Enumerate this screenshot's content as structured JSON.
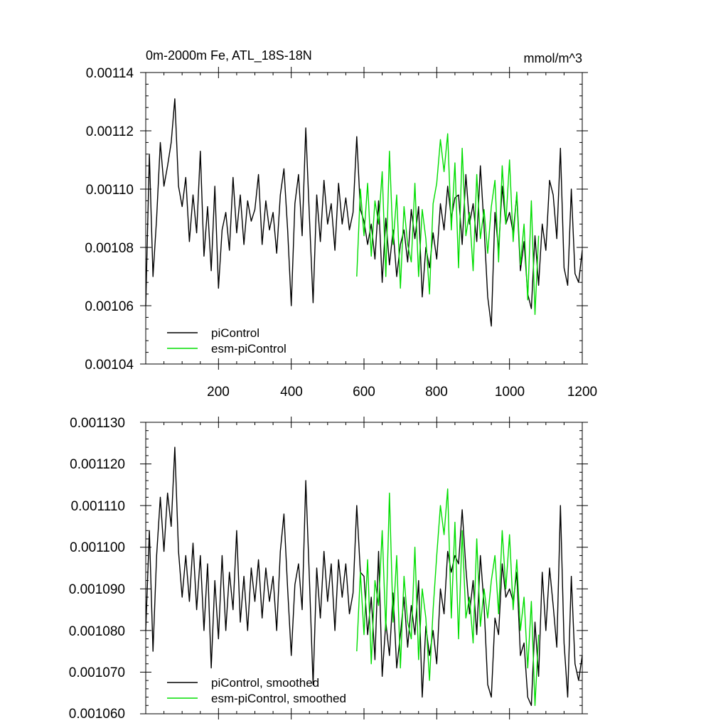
{
  "colors": {
    "pi": "#000000",
    "esm": "#00dd00",
    "background": "#ffffff"
  },
  "chart_data": [
    {
      "type": "line",
      "title": "0m-2000m Fe, ATL_18S-18N",
      "units": "mmol/m^3",
      "xlim": [
        0,
        1200
      ],
      "ylim": [
        0.00104,
        0.00114
      ],
      "x_ticks": [
        200,
        400,
        600,
        800,
        1000,
        1200
      ],
      "x_tick_labels": [
        "200",
        "400",
        "600",
        "800",
        "1000",
        "1200"
      ],
      "y_ticks": [
        0.00104,
        0.00106,
        0.00108,
        0.0011,
        0.00112,
        0.00114
      ],
      "y_tick_labels": [
        "0.00104",
        "0.00106",
        "0.00108",
        "0.00110",
        "0.00112",
        "0.00114"
      ],
      "legend_position": "bottom-left",
      "series": [
        {
          "name": "piControl",
          "color": "#000000",
          "x": [
            0,
            10,
            20,
            30,
            40,
            50,
            60,
            70,
            80,
            90,
            100,
            110,
            120,
            130,
            140,
            150,
            160,
            170,
            180,
            190,
            200,
            210,
            220,
            230,
            240,
            250,
            260,
            270,
            280,
            290,
            300,
            310,
            320,
            330,
            340,
            350,
            360,
            370,
            380,
            390,
            400,
            410,
            420,
            430,
            440,
            450,
            460,
            470,
            480,
            490,
            500,
            510,
            520,
            530,
            540,
            550,
            560,
            570,
            580,
            590,
            600,
            610,
            620,
            630,
            640,
            650,
            660,
            670,
            680,
            690,
            700,
            710,
            720,
            730,
            740,
            750,
            760,
            770,
            780,
            790,
            800,
            810,
            820,
            830,
            840,
            850,
            860,
            870,
            880,
            890,
            900,
            910,
            920,
            930,
            940,
            950,
            960,
            970,
            980,
            990,
            1000,
            1010,
            1020,
            1030,
            1040,
            1050,
            1060,
            1070,
            1080,
            1090,
            1100,
            1110,
            1120,
            1130,
            1140,
            1150,
            1160,
            1170,
            1180,
            1190,
            1200
          ],
          "values": [
            0.00106,
            0.001112,
            0.00107,
            0.00109,
            0.001116,
            0.001101,
            0.001108,
            0.001116,
            0.001131,
            0.001101,
            0.001094,
            0.001104,
            0.001082,
            0.001098,
            0.001085,
            0.001113,
            0.001077,
            0.001094,
            0.001072,
            0.001101,
            0.001066,
            0.001086,
            0.001092,
            0.001079,
            0.001104,
            0.001085,
            0.001098,
            0.001081,
            0.001096,
            0.001089,
            0.001093,
            0.001105,
            0.001081,
            0.001096,
            0.001086,
            0.001092,
            0.001078,
            0.001098,
            0.001107,
            0.001086,
            0.00106,
            0.001095,
            0.001105,
            0.001084,
            0.001121,
            0.00109,
            0.001061,
            0.001098,
            0.001082,
            0.001103,
            0.001088,
            0.001095,
            0.001079,
            0.001102,
            0.001088,
            0.001097,
            0.001086,
            0.001092,
            0.001118,
            0.001093,
            0.001089,
            0.001081,
            0.001088,
            0.001076,
            0.001096,
            0.001068,
            0.00109,
            0.001074,
            0.001086,
            0.00107,
            0.001081,
            0.001086,
            0.001075,
            0.001093,
            0.001083,
            0.001094,
            0.001063,
            0.00108,
            0.001073,
            0.001085,
            0.001076,
            0.001095,
            0.001086,
            0.001101,
            0.00109,
            0.001097,
            0.001098,
            0.001081,
            0.001105,
            0.001088,
            0.001095,
            0.001082,
            0.001108,
            0.001087,
            0.001063,
            0.001053,
            0.001092,
            0.001079,
            0.001101,
            0.001088,
            0.001092,
            0.001085,
            0.001098,
            0.001072,
            0.001082,
            0.001064,
            0.001059,
            0.001084,
            0.001067,
            0.001088,
            0.001079,
            0.001103,
            0.001098,
            0.001083,
            0.001114,
            0.001073,
            0.001067,
            0.0011,
            0.001071,
            0.001068,
            0.001079
          ]
        },
        {
          "name": "esm-piControl",
          "color": "#00dd00",
          "x": [
            580,
            590,
            600,
            610,
            620,
            630,
            640,
            650,
            660,
            670,
            680,
            690,
            700,
            710,
            720,
            730,
            740,
            750,
            760,
            770,
            780,
            790,
            800,
            810,
            820,
            830,
            840,
            850,
            860,
            870,
            880,
            890,
            900,
            910,
            920,
            930,
            940,
            950,
            960,
            970,
            980,
            990,
            1000,
            1010,
            1020,
            1030,
            1040,
            1050,
            1060,
            1070,
            1080
          ],
          "values": [
            0.00107,
            0.0011,
            0.001084,
            0.001102,
            0.001077,
            0.001096,
            0.001088,
            0.001106,
            0.00107,
            0.001113,
            0.001081,
            0.001098,
            0.001066,
            0.001094,
            0.001081,
            0.001075,
            0.001102,
            0.00107,
            0.001093,
            0.001083,
            0.001064,
            0.001095,
            0.001102,
            0.001117,
            0.001106,
            0.001119,
            0.001086,
            0.001109,
            0.001073,
            0.001114,
            0.001084,
            0.001092,
            0.001072,
            0.001105,
            0.001083,
            0.001093,
            0.001078,
            0.001094,
            0.001103,
            0.001075,
            0.001108,
            0.001088,
            0.00111,
            0.001082,
            0.001099,
            0.001074,
            0.001088,
            0.001062,
            0.001096,
            0.001057,
            0.001084
          ]
        }
      ]
    },
    {
      "type": "line",
      "title": "",
      "xlim": [
        0,
        1200
      ],
      "ylim": [
        0.00106,
        0.00113
      ],
      "x_ticks": [
        200,
        400,
        600,
        800,
        1000,
        1200
      ],
      "y_ticks": [
        0.00106,
        0.00107,
        0.00108,
        0.00109,
        0.0011,
        0.00111,
        0.00112,
        0.00113
      ],
      "y_tick_labels": [
        "0.001060",
        "0.001070",
        "0.001080",
        "0.001090",
        "0.001100",
        "0.001110",
        "0.001120",
        "0.001130"
      ],
      "legend_position": "bottom-left",
      "series": [
        {
          "name": "piControl, smoothed",
          "color": "#000000",
          "x": [
            0,
            10,
            20,
            30,
            40,
            50,
            60,
            70,
            80,
            90,
            100,
            110,
            120,
            130,
            140,
            150,
            160,
            170,
            180,
            190,
            200,
            210,
            220,
            230,
            240,
            250,
            260,
            270,
            280,
            290,
            300,
            310,
            320,
            330,
            340,
            350,
            360,
            370,
            380,
            390,
            400,
            410,
            420,
            430,
            440,
            450,
            460,
            470,
            480,
            490,
            500,
            510,
            520,
            530,
            540,
            550,
            560,
            570,
            580,
            590,
            600,
            610,
            620,
            630,
            640,
            650,
            660,
            670,
            680,
            690,
            700,
            710,
            720,
            730,
            740,
            750,
            760,
            770,
            780,
            790,
            800,
            810,
            820,
            830,
            840,
            850,
            860,
            870,
            880,
            890,
            900,
            910,
            920,
            930,
            940,
            950,
            960,
            970,
            980,
            990,
            1000,
            1010,
            1020,
            1030,
            1040,
            1050,
            1060,
            1070,
            1080,
            1090,
            1100,
            1110,
            1120,
            1130,
            1140,
            1150,
            1160,
            1170,
            1180,
            1190,
            1200
          ],
          "values": [
            0.00108,
            0.001104,
            0.001075,
            0.001098,
            0.001112,
            0.001099,
            0.001113,
            0.001105,
            0.001124,
            0.001099,
            0.001088,
            0.001098,
            0.001087,
            0.001101,
            0.001085,
            0.001098,
            0.00108,
            0.001096,
            0.001071,
            0.001092,
            0.001078,
            0.001098,
            0.00108,
            0.001094,
            0.001085,
            0.001104,
            0.001082,
            0.001093,
            0.00108,
            0.001095,
            0.001087,
            0.001097,
            0.001083,
            0.001095,
            0.001087,
            0.001093,
            0.00108,
            0.001099,
            0.001108,
            0.00109,
            0.001074,
            0.001091,
            0.001096,
            0.001085,
            0.001116,
            0.001092,
            0.001067,
            0.001095,
            0.001083,
            0.001099,
            0.001087,
            0.001096,
            0.00108,
            0.001097,
            0.001088,
            0.001096,
            0.001084,
            0.001089,
            0.00111,
            0.001094,
            0.001093,
            0.001079,
            0.001088,
            0.001073,
            0.001099,
            0.001069,
            0.001082,
            0.001074,
            0.001089,
            0.001071,
            0.001079,
            0.001088,
            0.001076,
            0.001086,
            0.001079,
            0.001092,
            0.001064,
            0.001081,
            0.001074,
            0.00108,
            0.001072,
            0.00109,
            0.001084,
            0.001099,
            0.001094,
            0.001098,
            0.001096,
            0.001109,
            0.001095,
            0.001084,
            0.001092,
            0.001079,
            0.001098,
            0.001086,
            0.001067,
            0.001064,
            0.001083,
            0.001079,
            0.001096,
            0.001088,
            0.00109,
            0.001087,
            0.001094,
            0.001074,
            0.001077,
            0.001064,
            0.001062,
            0.001082,
            0.001069,
            0.001094,
            0.00108,
            0.001095,
            0.001086,
            0.001076,
            0.00111,
            0.001077,
            0.001064,
            0.001093,
            0.001072,
            0.001068,
            0.001074
          ]
        },
        {
          "name": "esm-piControl, smoothed",
          "color": "#00dd00",
          "x": [
            580,
            590,
            600,
            610,
            620,
            630,
            640,
            650,
            660,
            670,
            680,
            690,
            700,
            710,
            720,
            730,
            740,
            750,
            760,
            770,
            780,
            790,
            800,
            810,
            820,
            830,
            840,
            850,
            860,
            870,
            880,
            890,
            900,
            910,
            920,
            930,
            940,
            950,
            960,
            970,
            980,
            990,
            1000,
            1010,
            1020,
            1030,
            1040,
            1050,
            1060,
            1070,
            1080
          ],
          "values": [
            0.001075,
            0.001094,
            0.001079,
            0.001097,
            0.001072,
            0.001092,
            0.001086,
            0.001104,
            0.00108,
            0.001113,
            0.001082,
            0.001098,
            0.001071,
            0.001093,
            0.001082,
            0.001078,
            0.0011,
            0.001073,
            0.00109,
            0.001083,
            0.001068,
            0.001085,
            0.001098,
            0.00111,
            0.001103,
            0.001114,
            0.001083,
            0.001106,
            0.001078,
            0.001104,
            0.001083,
            0.001088,
            0.001077,
            0.001102,
            0.001081,
            0.00109,
            0.001083,
            0.001092,
            0.001098,
            0.001084,
            0.001104,
            0.00109,
            0.001103,
            0.001085,
            0.001097,
            0.00108,
            0.001088,
            0.001071,
            0.001087,
            0.001062,
            0.001079
          ]
        }
      ]
    }
  ]
}
